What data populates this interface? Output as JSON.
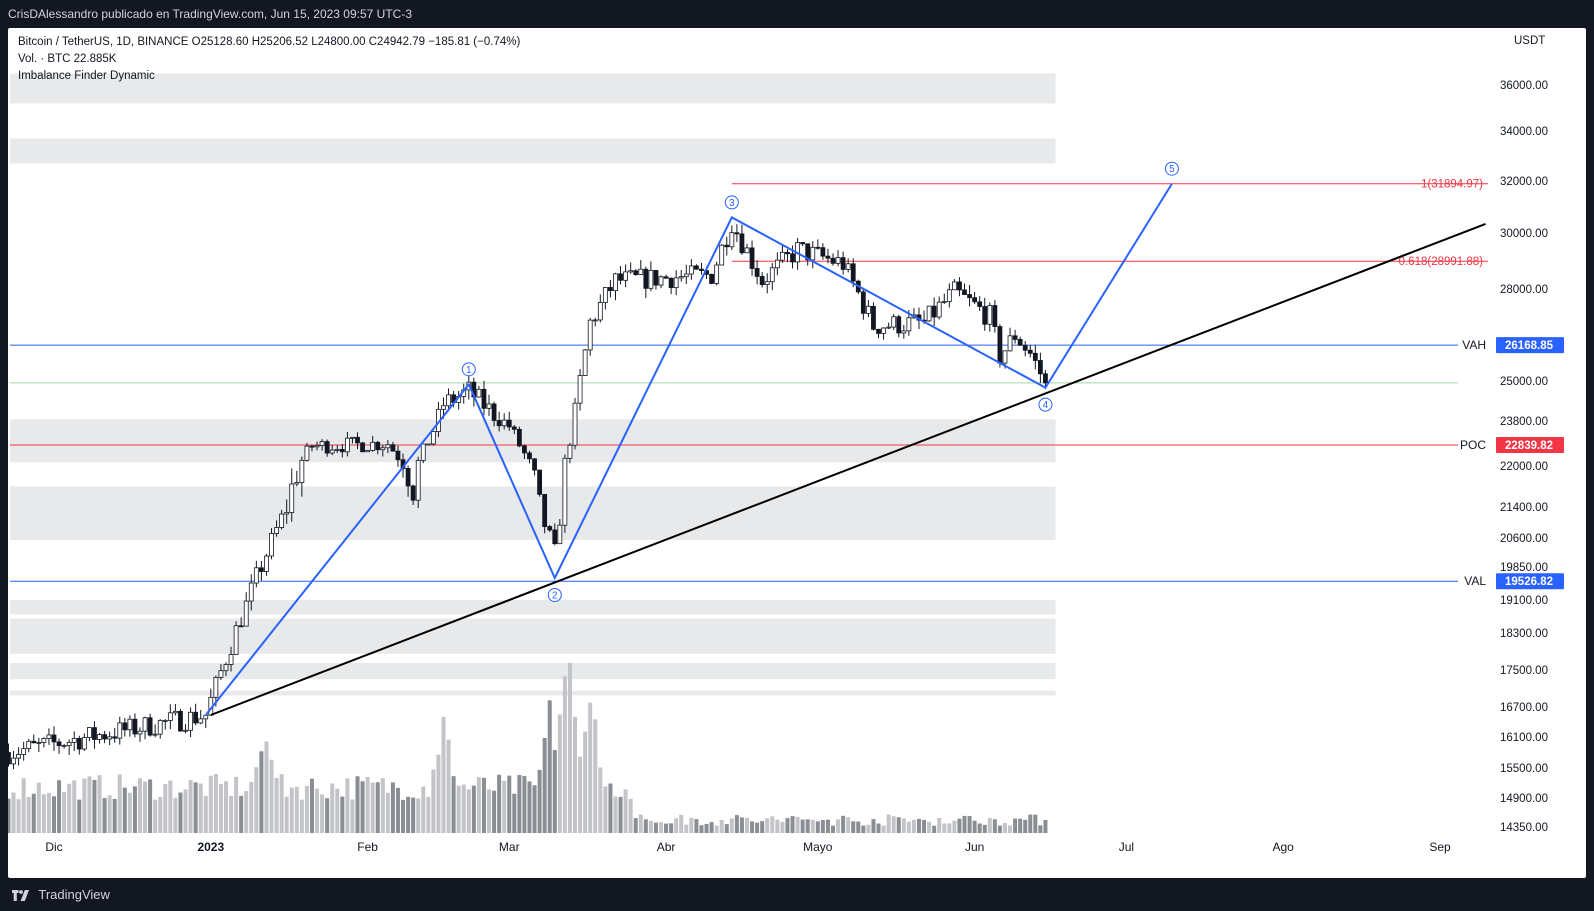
{
  "header": {
    "published_by": "CrisDAlessandro publicado en TradingView.com, Jun 15, 2023 09:57 UTC-3"
  },
  "legend": {
    "symbol_line": "Bitcoin / TetherUS, 1D, BINANCE  O25128.60  H25206.52  L24800.00  C24942.79  −185.81 (−0.74%)",
    "volume_line": "Vol. · BTC  22.885K",
    "indicator_line": "Imbalance Finder Dynamic"
  },
  "footer": {
    "brand": "TradingView"
  },
  "chart_data": {
    "type": "candlestick",
    "symbol": "Bitcoin / TetherUS",
    "interval": "1D",
    "exchange": "BINANCE",
    "currency_label": "USDT",
    "ohlc_last": {
      "open": 25128.6,
      "high": 25206.52,
      "low": 24800.0,
      "close": 24942.79,
      "change": -185.81,
      "change_pct": -0.74
    },
    "volume_last": "22.885K",
    "y_ticks": [
      36000.0,
      34000.0,
      32000.0,
      30000.0,
      28000.0,
      25000.0,
      23800.0,
      22000.0,
      21400.0,
      20600.0,
      19850.0,
      19100.0,
      18300.0,
      17500.0,
      16700.0,
      16100.0,
      15500.0,
      14900.0,
      14350.0
    ],
    "y_tick_labels": [
      "36000.00",
      "34000.00",
      "32000.00",
      "30000.00",
      "28000.00",
      "25000.00",
      "23800.00",
      "22000.00",
      "21400.00",
      "20600.00",
      "19850.00",
      "19100.00",
      "18300.00",
      "17500.00",
      "16700.00",
      "16100.00",
      "15500.00",
      "14900.00",
      "14350.00"
    ],
    "x_ticks": [
      {
        "label": "Dic",
        "date": "2022-12-01"
      },
      {
        "label": "2023",
        "date": "2023-01-01"
      },
      {
        "label": "Feb",
        "date": "2023-02-01"
      },
      {
        "label": "Mar",
        "date": "2023-03-01"
      },
      {
        "label": "Abr",
        "date": "2023-04-01"
      },
      {
        "label": "Mayo",
        "date": "2023-05-01"
      },
      {
        "label": "Jun",
        "date": "2023-06-01"
      },
      {
        "label": "Jul",
        "date": "2023-07-01"
      },
      {
        "label": "Ago",
        "date": "2023-08-01"
      },
      {
        "label": "Sep",
        "date": "2023-09-01"
      }
    ],
    "anchors": [
      {
        "date": "2022-11-22",
        "price": 15800
      },
      {
        "date": "2022-12-31",
        "price": 16540
      },
      {
        "date": "2023-01-14",
        "price": 20800
      },
      {
        "date": "2023-01-21",
        "price": 22800
      },
      {
        "date": "2023-02-05",
        "price": 22900
      },
      {
        "date": "2023-02-10",
        "price": 21700
      },
      {
        "date": "2023-02-16",
        "price": 24300
      },
      {
        "date": "2023-02-21",
        "price": 24700
      },
      {
        "date": "2023-03-01",
        "price": 23600
      },
      {
        "date": "2023-03-10",
        "price": 20200
      },
      {
        "date": "2023-03-17",
        "price": 26900
      },
      {
        "date": "2023-03-22",
        "price": 28300
      },
      {
        "date": "2023-04-01",
        "price": 28400
      },
      {
        "date": "2023-04-10",
        "price": 28500
      },
      {
        "date": "2023-04-14",
        "price": 30400
      },
      {
        "date": "2023-04-20",
        "price": 28300
      },
      {
        "date": "2023-04-27",
        "price": 29400
      },
      {
        "date": "2023-05-06",
        "price": 28900
      },
      {
        "date": "2023-05-12",
        "price": 26800
      },
      {
        "date": "2023-05-22",
        "price": 26900
      },
      {
        "date": "2023-05-28",
        "price": 27900
      },
      {
        "date": "2023-06-04",
        "price": 27100
      },
      {
        "date": "2023-06-06",
        "price": 25800
      },
      {
        "date": "2023-06-09",
        "price": 26500
      },
      {
        "date": "2023-06-12",
        "price": 25900
      },
      {
        "date": "2023-06-15",
        "price": 24942.79
      }
    ],
    "volume_peaks": [
      {
        "date": "2023-01-12",
        "value": 1.0
      },
      {
        "date": "2023-02-16",
        "value": 1.05
      },
      {
        "date": "2023-03-09",
        "value": 1.2
      },
      {
        "date": "2023-03-12",
        "value": 1.45
      },
      {
        "date": "2023-03-13",
        "value": 1.5
      },
      {
        "date": "2023-03-17",
        "value": 1.3
      }
    ],
    "horizontal_levels": [
      {
        "label": "VAH",
        "value": 26168.85,
        "value_label": "26168.85",
        "color": "#2962ff"
      },
      {
        "label": "POC",
        "value": 22839.82,
        "value_label": "22839.82",
        "color": "#f23645"
      },
      {
        "label": "VAL",
        "value": 19526.82,
        "value_label": "19526.82",
        "color": "#2962ff"
      },
      {
        "label": "",
        "value": 24942.79,
        "color": "#a5d6a7"
      }
    ],
    "fib_levels": [
      {
        "label": "1(31894.97)",
        "value": 31894.97,
        "color": "#f23645"
      },
      {
        "label": "0.618(28991.88)",
        "value": 28991.88,
        "color": "#f23645"
      }
    ],
    "fib_start_date": "2023-04-14",
    "imbalance_zones": [
      {
        "low": 35200,
        "high": 36500
      },
      {
        "low": 32700,
        "high": 33700
      },
      {
        "low": 22150,
        "high": 23850
      },
      {
        "low": 20550,
        "high": 21700
      },
      {
        "low": 18750,
        "high": 19100
      },
      {
        "low": 17850,
        "high": 18650
      },
      {
        "low": 17300,
        "high": 17650
      },
      {
        "low": 16950,
        "high": 17050
      }
    ],
    "imbalance_zone_end_date": "2023-06-17",
    "elliott_wave": {
      "color": "#2962ff",
      "points": [
        {
          "label": "",
          "date": "2022-12-31",
          "price": 16540
        },
        {
          "label": "1",
          "date": "2023-02-21",
          "price": 24900
        },
        {
          "label": "2",
          "date": "2023-03-10",
          "price": 19600
        },
        {
          "label": "3",
          "date": "2023-04-14",
          "price": 30600
        },
        {
          "label": "4",
          "date": "2023-06-15",
          "price": 24800
        },
        {
          "label": "5",
          "date": "2023-07-10",
          "price": 31894.97
        }
      ]
    },
    "trendline": {
      "color": "#000000",
      "from": {
        "date": "2023-01-01",
        "price": 16540
      },
      "to": {
        "date": "2023-09-10",
        "price": 30350
      }
    },
    "grid": false,
    "volume_color_up": "#c2c4c8",
    "volume_color_down": "#8a8d93"
  }
}
